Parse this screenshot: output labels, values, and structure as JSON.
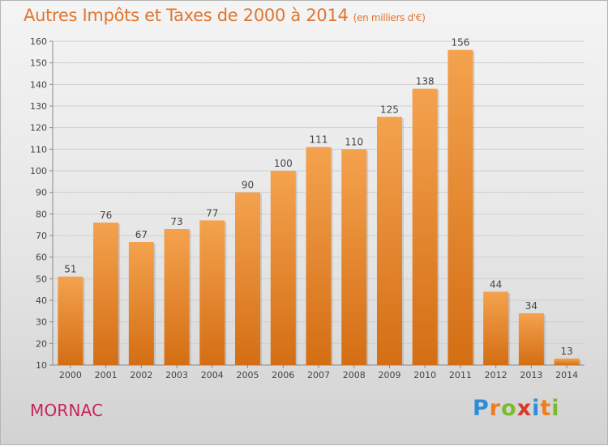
{
  "title": "Autres Impôts et Taxes de 2000 à 2014",
  "title_unit": "(en milliers d'€)",
  "commune": "MORNAC",
  "brand": {
    "letters": [
      "P",
      "r",
      "o",
      "x",
      "i",
      "t",
      "i"
    ],
    "colors": [
      "#2f8ed8",
      "#f07d1a",
      "#7cbb2b",
      "#d83a2a",
      "#2f8ed8",
      "#f07d1a",
      "#7cbb2b"
    ]
  },
  "colors": {
    "bar_top": "#f4a24e",
    "bar_bottom": "#d46e14",
    "title": "#e0762e",
    "commune": "#c8245a"
  },
  "chart_data": {
    "type": "bar",
    "title": "Autres Impôts et Taxes de 2000 à 2014",
    "categories": [
      "2000",
      "2001",
      "2002",
      "2003",
      "2004",
      "2005",
      "2006",
      "2007",
      "2008",
      "2009",
      "2010",
      "2011",
      "2012",
      "2013",
      "2014"
    ],
    "values": [
      51,
      76,
      67,
      73,
      77,
      90,
      100,
      111,
      110,
      125,
      138,
      156,
      44,
      34,
      13
    ],
    "ylim": [
      10,
      160
    ],
    "yticks": [
      10,
      20,
      30,
      40,
      50,
      60,
      70,
      80,
      90,
      100,
      110,
      120,
      130,
      140,
      150,
      160
    ],
    "grid": true,
    "xlabel": "",
    "ylabel": ""
  }
}
